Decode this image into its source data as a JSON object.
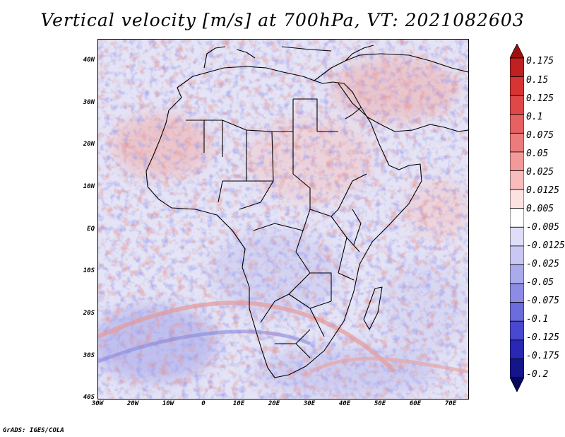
{
  "title": "Vertical velocity [m/s] at 700hPa, VT: 2021082603",
  "map": {
    "lat_labels": [
      "40N",
      "30N",
      "20N",
      "10N",
      "EQ",
      "10S",
      "20S",
      "30S",
      "40S"
    ],
    "lon_labels": [
      "30W",
      "20W",
      "10W",
      "0",
      "10E",
      "20E",
      "30E",
      "40E",
      "50E",
      "60E",
      "70E"
    ]
  },
  "colorbar": {
    "labels": [
      "0.175",
      "0.15",
      "0.125",
      "0.1",
      "0.075",
      "0.05",
      "0.025",
      "0.0125",
      "0.005",
      "-0.005",
      "-0.0125",
      "-0.025",
      "-0.05",
      "-0.075",
      "-0.1",
      "-0.125",
      "-0.175",
      "-0.2"
    ],
    "colors": [
      "#9e1010",
      "#c02020",
      "#d83434",
      "#e04848",
      "#e66262",
      "#ec7c7c",
      "#f29a9a",
      "#f8bcbc",
      "#fde2e2",
      "#ffffff",
      "#dedef8",
      "#c8c8f2",
      "#aaaaec",
      "#8c8ce4",
      "#6c6cdc",
      "#4848d0",
      "#2828b4",
      "#14148c",
      "#080860"
    ]
  },
  "credit": "GrADS: IGES/COLA"
}
